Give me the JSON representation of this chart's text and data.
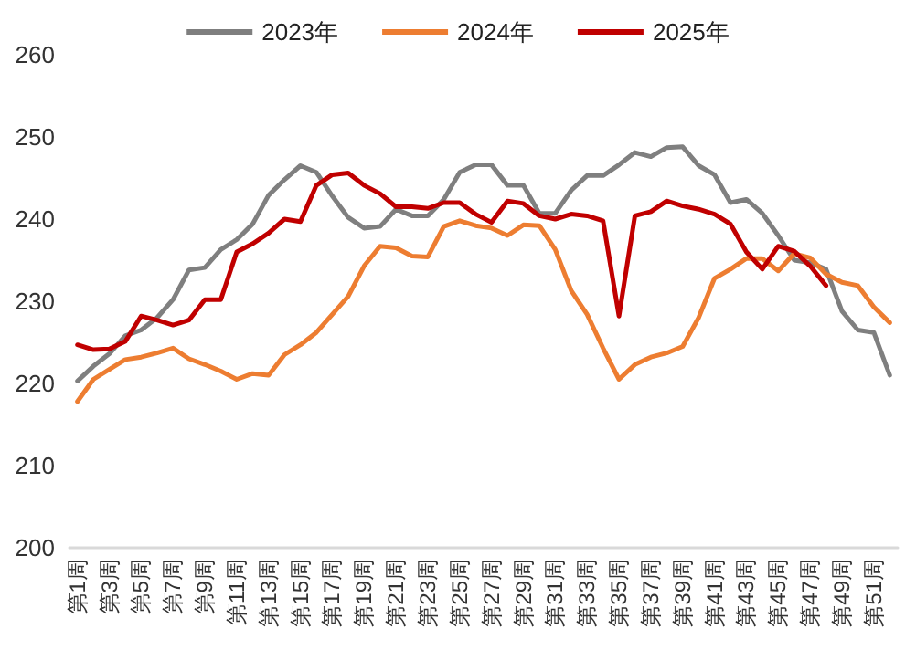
{
  "chart_data": {
    "type": "line",
    "categories": [
      "第1周",
      null,
      "第3周",
      null,
      "第5周",
      null,
      "第7周",
      null,
      "第9周",
      null,
      "第11周",
      null,
      "第13周",
      null,
      "第15周",
      null,
      "第17周",
      null,
      "第19周",
      null,
      "第21周",
      null,
      "第23周",
      null,
      "第25周",
      null,
      "第27周",
      null,
      "第29周",
      null,
      "第31周",
      null,
      "第33周",
      null,
      "第35周",
      null,
      "第37周",
      null,
      "第39周",
      null,
      "第41周",
      null,
      "第43周",
      null,
      "第45周",
      null,
      "第47周",
      null,
      "第49周",
      null,
      "第51周",
      null
    ],
    "series": [
      {
        "name": "2023年",
        "color": "#7f7f7f",
        "values": [
          220.3,
          222.1,
          223.6,
          225.8,
          226.5,
          228.0,
          230.2,
          233.8,
          234.1,
          236.3,
          237.5,
          239.4,
          242.9,
          244.8,
          246.5,
          245.7,
          242.8,
          240.2,
          238.9,
          239.1,
          241.2,
          240.4,
          240.4,
          242.4,
          245.7,
          246.6,
          246.6,
          244.1,
          244.1,
          240.7,
          240.7,
          243.5,
          245.3,
          245.3,
          246.6,
          248.1,
          247.6,
          248.7,
          248.8,
          246.5,
          245.4,
          242.0,
          242.4,
          240.7,
          238.0,
          235.0,
          234.7,
          233.9,
          228.8,
          226.5,
          226.2,
          221.0
        ]
      },
      {
        "name": "2024年",
        "color": "#ed7d31",
        "values": [
          217.8,
          220.5,
          221.7,
          222.9,
          223.2,
          223.7,
          224.3,
          223.0,
          222.3,
          221.5,
          220.5,
          221.2,
          221.0,
          223.5,
          224.7,
          226.2,
          228.4,
          230.6,
          234.3,
          236.7,
          236.5,
          235.5,
          235.4,
          239.1,
          239.8,
          239.2,
          238.9,
          238.0,
          239.3,
          239.2,
          236.3,
          231.3,
          228.4,
          224.3,
          220.5,
          222.3,
          223.2,
          223.7,
          224.5,
          228.0,
          232.8,
          233.9,
          235.2,
          235.2,
          233.7,
          235.8,
          235.3,
          233.3,
          232.3,
          231.9,
          229.3,
          227.4
        ]
      },
      {
        "name": "2025年",
        "color": "#c00000",
        "values": [
          224.7,
          224.1,
          224.2,
          225.1,
          228.2,
          227.7,
          227.1,
          227.7,
          230.2,
          230.2,
          236.0,
          237.0,
          238.3,
          240.0,
          239.7,
          244.1,
          245.4,
          245.6,
          244.1,
          243.1,
          241.5,
          241.5,
          241.3,
          242.0,
          242.0,
          240.6,
          239.6,
          242.2,
          241.9,
          240.4,
          240.0,
          240.6,
          240.4,
          239.8,
          228.2,
          240.4,
          240.9,
          242.2,
          241.6,
          241.2,
          240.6,
          239.4,
          236.0,
          233.9,
          236.7,
          236.1,
          234.3,
          231.9,
          null,
          null,
          null,
          null
        ]
      }
    ],
    "ylim": [
      200,
      260
    ],
    "yticks": [
      200,
      210,
      220,
      230,
      240,
      250,
      260
    ],
    "legend": "top",
    "marker": "none",
    "line_style": "solid"
  }
}
